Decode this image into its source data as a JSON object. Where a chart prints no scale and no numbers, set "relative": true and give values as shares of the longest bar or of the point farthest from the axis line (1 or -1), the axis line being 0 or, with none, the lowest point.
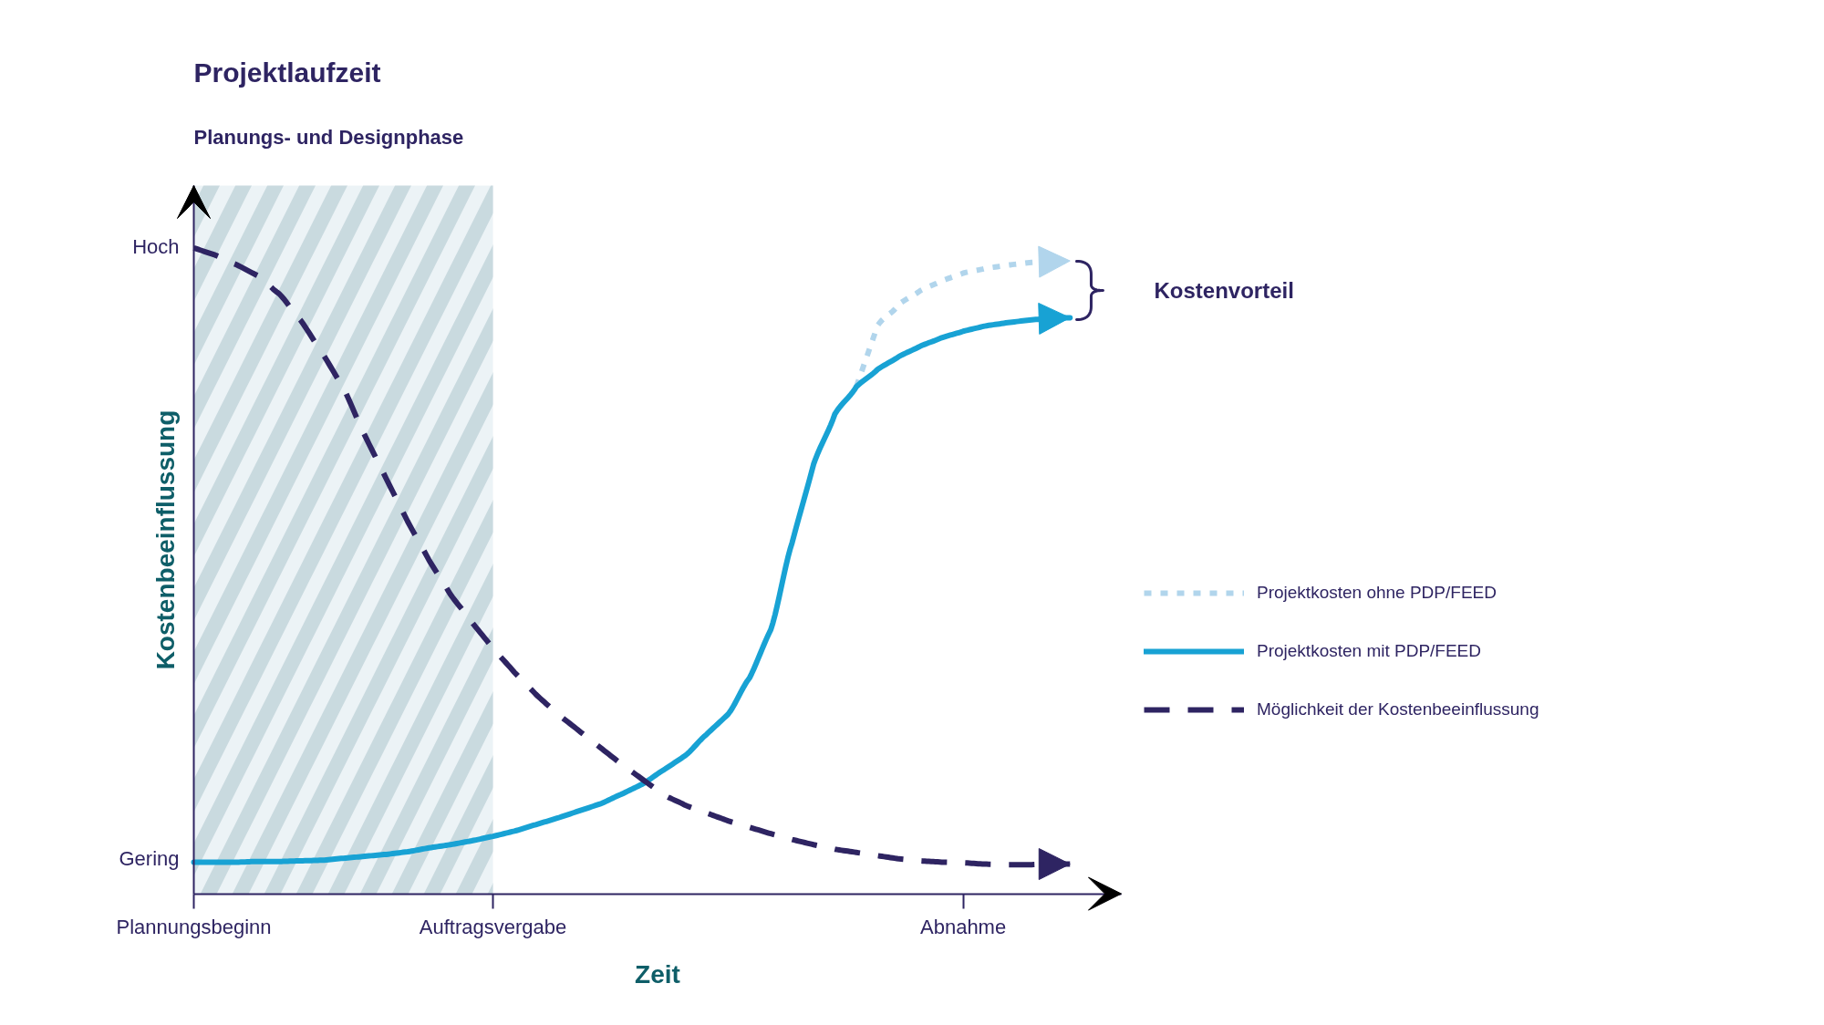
{
  "chart_data": {
    "type": "line",
    "relative": true,
    "title": "Projektlaufzeit",
    "xlabel": "Zeit",
    "ylabel": "Kostenbeeinflussung",
    "categories": [
      "Plannungsbeginn",
      null,
      null,
      null,
      null,
      null,
      null,
      null,
      null,
      null,
      null,
      null,
      null,
      null,
      "Auftragsvergabe",
      null,
      null,
      null,
      null,
      null,
      null,
      null,
      null,
      null,
      null,
      null,
      null,
      null,
      null,
      null,
      null,
      null,
      null,
      null,
      null,
      null,
      "Abnahme",
      null,
      null,
      null,
      null,
      null,
      null,
      null
    ],
    "bands": [
      {
        "axis": "x",
        "from": "Plannungsbeginn",
        "to": "Auftragsvergabe",
        "label": "Planungs- und Designphase",
        "color": "#d5e5ea"
      }
    ],
    "series": [
      {
        "name": "Projektkosten ohne PDP/FEED",
        "color": "#b1d5ec",
        "line_style": "dotted",
        "values": [
          null,
          null,
          null,
          null,
          null,
          null,
          null,
          null,
          null,
          null,
          null,
          null,
          null,
          null,
          null,
          null,
          null,
          null,
          null,
          null,
          null,
          null,
          null,
          null,
          null,
          null,
          null,
          null,
          null,
          null,
          null,
          0.785,
          0.88,
          0.913,
          0.934,
          0.949,
          0.961,
          0.968,
          0.973,
          0.977,
          0.979,
          0.98,
          null,
          null
        ]
      },
      {
        "name": "Projektkosten mit PDP/FEED",
        "color": "#18a2d4",
        "line_style": "solid",
        "values": [
          0.049,
          0.049,
          0.049,
          0.05,
          0.05,
          0.051,
          0.052,
          0.055,
          0.058,
          0.061,
          0.065,
          0.071,
          0.076,
          0.082,
          0.089,
          0.097,
          0.107,
          0.117,
          0.128,
          0.139,
          0.154,
          0.17,
          0.192,
          0.214,
          0.247,
          0.278,
          0.334,
          0.409,
          0.544,
          0.665,
          0.743,
          0.785,
          0.812,
          0.832,
          0.848,
          0.861,
          0.871,
          0.879,
          0.884,
          0.888,
          0.891,
          0.892,
          null,
          null
        ]
      },
      {
        "name": "Möglichkeit der Kostenbeeinflussung",
        "color": "#2e2462",
        "line_style": "dashed",
        "values": [
          1.0,
          0.989,
          0.974,
          0.957,
          0.929,
          0.888,
          0.838,
          0.783,
          0.71,
          0.643,
          0.577,
          0.517,
          0.464,
          0.421,
          0.38,
          0.343,
          0.309,
          0.279,
          0.253,
          0.227,
          0.201,
          0.177,
          0.153,
          0.137,
          0.125,
          0.113,
          0.103,
          0.093,
          0.084,
          0.076,
          0.069,
          0.064,
          0.059,
          0.054,
          0.051,
          0.049,
          0.048,
          0.046,
          0.045,
          0.045,
          0.046,
          0.046,
          null,
          null
        ]
      }
    ],
    "annotations": [
      "Hoch",
      "Kostenvorteil",
      "Gering"
    ],
    "legend": "right"
  }
}
